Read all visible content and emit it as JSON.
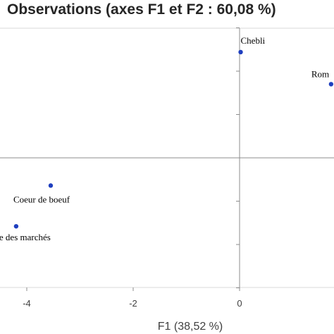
{
  "chart_data": {
    "type": "scatter",
    "title": "Observations (axes F1 et F2 : 60,08 %)",
    "xlabel": "F1 (38,52 %)",
    "ylabel": "",
    "xlim": [
      -4.5,
      1.75
    ],
    "ylim": [
      -1.5,
      1.5
    ],
    "x_ticks": [
      -4,
      -2,
      0
    ],
    "x_tick_labels": [
      "-4",
      "-2",
      "0"
    ],
    "y_ticks": [
      -1.5,
      -1,
      -0.5,
      0,
      0.5,
      1,
      1.5
    ],
    "grid": false,
    "point_color": "#1f3fbf",
    "points": [
      {
        "label": "Chebli",
        "x": 0.02,
        "y": 1.22
      },
      {
        "label": "Rom",
        "x": 1.72,
        "y": 0.85
      },
      {
        "label": "Coeur de boeuf",
        "x": -3.55,
        "y": -0.32
      },
      {
        "label": "e des marchés",
        "x": -4.2,
        "y": -0.79
      }
    ]
  }
}
